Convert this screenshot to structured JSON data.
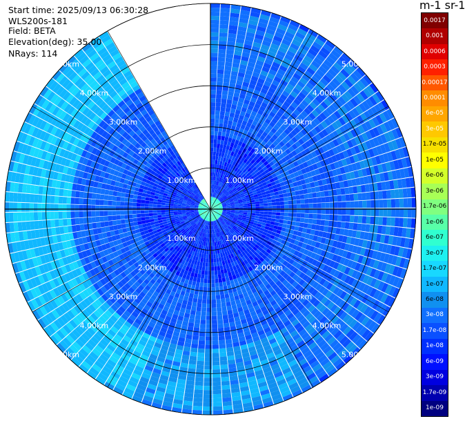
{
  "info": {
    "start_time": "Start time: 2025/09/13 06:30:28",
    "instrument": "WLS200s-181",
    "field": "Field: BETA",
    "elevation": "Elevation(deg): 35.00",
    "nrays": "NRays: 114"
  },
  "colorbar": {
    "title": "m-1 sr-1",
    "labels": [
      "0.0017",
      "0.001",
      "0.0006",
      "0.0003",
      "0.00017",
      "0.0001",
      "6e-05",
      "3e-05",
      "1.7e-05",
      "1e-05",
      "6e-06",
      "3e-06",
      "1.7e-06",
      "1e-06",
      "6e-07",
      "3e-07",
      "1.7e-07",
      "1e-07",
      "6e-08",
      "3e-08",
      "1.7e-08",
      "1e-08",
      "6e-09",
      "3e-09",
      "1.7e-09",
      "1e-09"
    ],
    "colors": [
      "#800000",
      "#b00000",
      "#e00000",
      "#ff2000",
      "#ff5800",
      "#ff8c00",
      "#ffa600",
      "#ffc800",
      "#f7e000",
      "#ffff00",
      "#d4ff2a",
      "#a8ff56",
      "#80ff80",
      "#58ffa8",
      "#30ffd0",
      "#1ef0f0",
      "#18d8ff",
      "#10b8ff",
      "#1090f0",
      "#1070ff",
      "#0a50ff",
      "#0030ff",
      "#0010ff",
      "#0000e0",
      "#0000b0",
      "#000080"
    ]
  },
  "chart_data": {
    "type": "ppi",
    "range_unit": "km",
    "max_range_km": 5.0,
    "range_rings_km": [
      1,
      2,
      3,
      4,
      5
    ],
    "ring_labels": [
      "1.00km",
      "2.00km",
      "3.00km",
      "4.00km",
      "5.00km"
    ],
    "n_rays": 114,
    "gap_azimuth_deg": [
      330,
      360
    ],
    "field": "BETA",
    "color_scale": "log",
    "value_range": [
      1e-09,
      0.0017
    ],
    "typical_values": {
      "near_range": "1e-08",
      "mid_range": "3e-08",
      "outer_ring_west_4_5km": "1.7e-07"
    }
  }
}
